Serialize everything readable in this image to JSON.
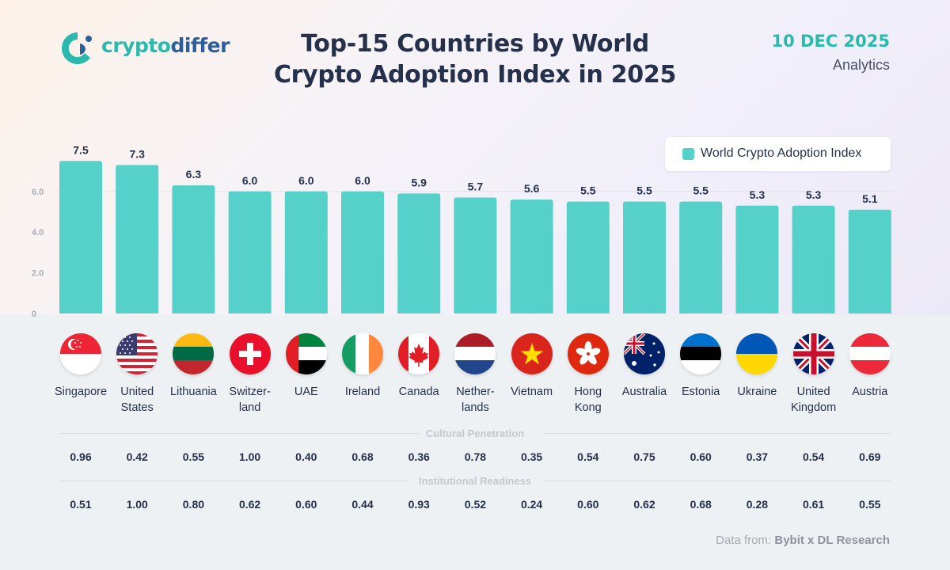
{
  "brand": {
    "name_part1": "crypto",
    "name_part2": "differ"
  },
  "header": {
    "title_line1": "Top-15 Countries by World",
    "title_line2": "Crypto Adoption Index in 2025",
    "date": "10 DEC 2025",
    "category": "Analytics"
  },
  "legend": {
    "label": "World Crypto Adoption Index"
  },
  "sections": {
    "cultural_label": "Cultural Penetration",
    "institutional_label": "Institutional Readiness"
  },
  "source": {
    "prefix": "Data from:",
    "name": "Bybit x DL Research"
  },
  "colors": {
    "bar": "#56d1c9",
    "accent": "#2bb9ad",
    "text": "#25304a"
  },
  "chart_data": {
    "type": "bar",
    "title": "Top-15 Countries by World Crypto Adoption Index in 2025",
    "series_name": "World Crypto Adoption Index",
    "ylim": [
      0,
      8
    ],
    "y_ticks": [
      {
        "value": 0,
        "label": "0"
      },
      {
        "value": 2,
        "label": "2.0"
      },
      {
        "value": 4,
        "label": "4.0"
      },
      {
        "value": 6,
        "label": "6.0"
      }
    ],
    "categories": [
      "Singapore",
      "United States",
      "Lithuania",
      "Switzerland",
      "UAE",
      "Ireland",
      "Canada",
      "Netherlands",
      "Vietnam",
      "Hong Kong",
      "Australia",
      "Estonia",
      "Ukraine",
      "United Kingdom",
      "Austria"
    ],
    "values": [
      7.5,
      7.3,
      6.3,
      6.0,
      6.0,
      6.0,
      5.9,
      5.7,
      5.6,
      5.5,
      5.5,
      5.5,
      5.3,
      5.3,
      5.1
    ],
    "value_labels": [
      "7.5",
      "7.3",
      "6.3",
      "6.0",
      "6.0",
      "6.0",
      "5.9",
      "5.7",
      "5.6",
      "5.5",
      "5.5",
      "5.5",
      "5.3",
      "5.3",
      "5.1"
    ]
  },
  "countries": [
    {
      "label": "Singapore",
      "flag": "singapore-flag-icon",
      "cultural": "0.96",
      "institutional": "0.51"
    },
    {
      "label": "United\nStates",
      "flag": "usa-flag-icon",
      "cultural": "0.42",
      "institutional": "1.00"
    },
    {
      "label": "Lithuania",
      "flag": "lithuania-flag-icon",
      "cultural": "0.55",
      "institutional": "0.80"
    },
    {
      "label": "Switzer-\nland",
      "flag": "switzerland-flag-icon",
      "cultural": "1.00",
      "institutional": "0.62"
    },
    {
      "label": "UAE",
      "flag": "uae-flag-icon",
      "cultural": "0.40",
      "institutional": "0.60"
    },
    {
      "label": "Ireland",
      "flag": "ireland-flag-icon",
      "cultural": "0.68",
      "institutional": "0.44"
    },
    {
      "label": "Canada",
      "flag": "canada-flag-icon",
      "cultural": "0.36",
      "institutional": "0.93"
    },
    {
      "label": "Nether-\nlands",
      "flag": "netherlands-flag-icon",
      "cultural": "0.78",
      "institutional": "0.52"
    },
    {
      "label": "Vietnam",
      "flag": "vietnam-flag-icon",
      "cultural": "0.35",
      "institutional": "0.24"
    },
    {
      "label": "Hong\nKong",
      "flag": "hong-kong-flag-icon",
      "cultural": "0.54",
      "institutional": "0.60"
    },
    {
      "label": "Australia",
      "flag": "australia-flag-icon",
      "cultural": "0.75",
      "institutional": "0.62"
    },
    {
      "label": "Estonia",
      "flag": "estonia-flag-icon",
      "cultural": "0.60",
      "institutional": "0.68"
    },
    {
      "label": "Ukraine",
      "flag": "ukraine-flag-icon",
      "cultural": "0.37",
      "institutional": "0.28"
    },
    {
      "label": "United\nKingdom",
      "flag": "uk-flag-icon",
      "cultural": "0.54",
      "institutional": "0.61"
    },
    {
      "label": "Austria",
      "flag": "austria-flag-icon",
      "cultural": "0.69",
      "institutional": "0.55"
    }
  ]
}
